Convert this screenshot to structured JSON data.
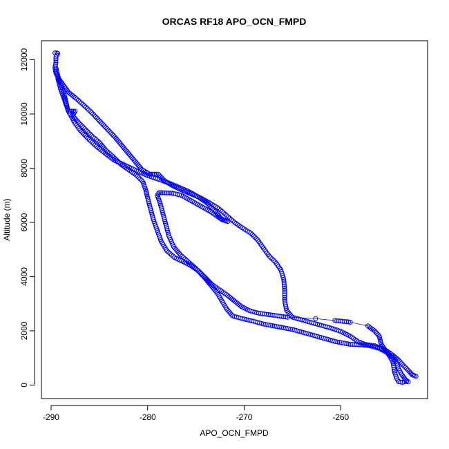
{
  "chart_data": {
    "type": "scatter",
    "title": "ORCAS RF18 APO_OCN_FMPD",
    "xlabel": "APO_OCN_FMPD",
    "ylabel": "Altitude (m)",
    "xlim": [
      -291,
      -251
    ],
    "ylim": [
      -500,
      12700
    ],
    "xticks": [
      -290,
      -280,
      -270,
      -260
    ],
    "yticks": [
      0,
      2000,
      4000,
      6000,
      8000,
      10000,
      12000
    ],
    "marker": "open-circle",
    "color": "#0000ff",
    "grid": false,
    "legend": "none",
    "series": [
      {
        "values": [
          [
            -289.6,
            12250
          ],
          [
            -289.4,
            12250
          ],
          [
            -289.3,
            12230
          ],
          [
            -289.5,
            12100
          ],
          [
            -289.5,
            11900
          ],
          [
            -289.6,
            11700
          ],
          [
            -289.5,
            11500
          ],
          [
            -289.2,
            11300
          ],
          [
            -288.6,
            11000
          ],
          [
            -288.2,
            10800
          ],
          [
            -287.5,
            10600
          ],
          [
            -286.7,
            10350
          ],
          [
            -285.8,
            10050
          ],
          [
            -285.0,
            9750
          ],
          [
            -284.2,
            9450
          ],
          [
            -283.4,
            9150
          ],
          [
            -282.7,
            8850
          ],
          [
            -282.0,
            8550
          ],
          [
            -281.3,
            8250
          ],
          [
            -280.6,
            7950
          ],
          [
            -279.8,
            7780
          ],
          [
            -279.3,
            7780
          ],
          [
            -278.9,
            7780
          ],
          [
            -278.3,
            7550
          ],
          [
            -277.4,
            7350
          ],
          [
            -276.5,
            7200
          ],
          [
            -275.5,
            7050
          ],
          [
            -274.5,
            6900
          ],
          [
            -273.5,
            6700
          ],
          [
            -272.6,
            6500
          ],
          [
            -271.8,
            6250
          ],
          [
            -271.0,
            6000
          ],
          [
            -270.2,
            5800
          ],
          [
            -269.3,
            5600
          ],
          [
            -268.6,
            5350
          ],
          [
            -268.0,
            5050
          ],
          [
            -267.4,
            4750
          ],
          [
            -266.8,
            4550
          ],
          [
            -266.2,
            4250
          ],
          [
            -265.9,
            3900
          ],
          [
            -265.8,
            3500
          ],
          [
            -265.8,
            3100
          ],
          [
            -265.6,
            2750
          ],
          [
            -265.0,
            2500
          ],
          [
            -264.0,
            2400
          ],
          [
            -263.0,
            2300
          ],
          [
            -262.0,
            2200
          ],
          [
            -261.0,
            2100
          ],
          [
            -260.0,
            1980
          ],
          [
            -259.0,
            1800
          ],
          [
            -258.2,
            1600
          ],
          [
            -257.5,
            1500
          ],
          [
            -256.5,
            1450
          ],
          [
            -255.8,
            1350
          ],
          [
            -255.2,
            1250
          ],
          [
            -254.6,
            1100
          ],
          [
            -254.1,
            950
          ],
          [
            -253.7,
            800
          ],
          [
            -253.3,
            650
          ],
          [
            -252.9,
            500
          ],
          [
            -252.6,
            380
          ],
          [
            -252.2,
            320
          ]
        ]
      },
      {
        "values": [
          [
            -289.5,
            11700
          ],
          [
            -289.3,
            11400
          ],
          [
            -289.0,
            11100
          ],
          [
            -288.7,
            10800
          ],
          [
            -288.5,
            10500
          ],
          [
            -288.3,
            10200
          ],
          [
            -288.2,
            10100
          ],
          [
            -287.5,
            10100
          ],
          [
            -287.8,
            9950
          ],
          [
            -287.2,
            9700
          ],
          [
            -286.5,
            9450
          ],
          [
            -285.8,
            9200
          ],
          [
            -285.0,
            8950
          ],
          [
            -284.3,
            8650
          ],
          [
            -283.5,
            8400
          ],
          [
            -282.8,
            8150
          ],
          [
            -282.0,
            7950
          ],
          [
            -281.2,
            7750
          ],
          [
            -280.5,
            7500
          ],
          [
            -280.2,
            7200
          ],
          [
            -280.0,
            6900
          ],
          [
            -279.7,
            6500
          ],
          [
            -279.4,
            6100
          ],
          [
            -279.0,
            5700
          ],
          [
            -278.6,
            5300
          ],
          [
            -278.0,
            4950
          ],
          [
            -277.2,
            4700
          ],
          [
            -276.3,
            4550
          ],
          [
            -275.5,
            4400
          ],
          [
            -274.7,
            4200
          ],
          [
            -274.0,
            3950
          ],
          [
            -273.3,
            3700
          ],
          [
            -272.5,
            3500
          ],
          [
            -271.7,
            3300
          ],
          [
            -271.0,
            3100
          ],
          [
            -270.3,
            2900
          ],
          [
            -269.5,
            2750
          ],
          [
            -268.5,
            2650
          ],
          [
            -267.5,
            2600
          ],
          [
            -266.5,
            2550
          ],
          [
            -265.5,
            2500
          ],
          [
            -262.6,
            2450
          ],
          [
            -260.6,
            2380
          ],
          [
            -259.0,
            2320
          ],
          [
            -257.2,
            2180
          ],
          [
            -256.5,
            2000
          ],
          [
            -256.0,
            1800
          ],
          [
            -255.8,
            1500
          ],
          [
            -255.3,
            1250
          ],
          [
            -254.9,
            1050
          ],
          [
            -254.6,
            850
          ],
          [
            -254.5,
            650
          ],
          [
            -254.4,
            450
          ],
          [
            -254.2,
            250
          ],
          [
            -254.0,
            120
          ],
          [
            -253.6,
            100
          ],
          [
            -253.2,
            130
          ]
        ]
      },
      {
        "values": [
          [
            -289.3,
            11300
          ],
          [
            -289.0,
            10900
          ],
          [
            -288.6,
            10500
          ],
          [
            -288.2,
            10100
          ],
          [
            -287.6,
            9700
          ],
          [
            -287.0,
            9400
          ],
          [
            -286.2,
            9100
          ],
          [
            -285.3,
            8800
          ],
          [
            -284.4,
            8550
          ],
          [
            -283.5,
            8300
          ],
          [
            -282.6,
            8150
          ],
          [
            -281.7,
            8000
          ],
          [
            -280.8,
            7850
          ],
          [
            -279.8,
            7700
          ],
          [
            -278.8,
            7580
          ],
          [
            -277.8,
            7450
          ],
          [
            -276.8,
            7300
          ],
          [
            -275.8,
            7150
          ],
          [
            -274.8,
            6950
          ],
          [
            -273.8,
            6700
          ],
          [
            -273.0,
            6400
          ],
          [
            -272.3,
            6100
          ],
          [
            -271.7,
            6030
          ],
          [
            -272.5,
            6150
          ],
          [
            -273.5,
            6400
          ],
          [
            -274.5,
            6600
          ],
          [
            -275.5,
            6800
          ],
          [
            -276.5,
            7000
          ],
          [
            -277.5,
            7080
          ],
          [
            -278.8,
            7100
          ],
          [
            -279.0,
            7000
          ],
          [
            -278.7,
            6700
          ],
          [
            -278.4,
            6300
          ],
          [
            -278.1,
            5900
          ],
          [
            -277.8,
            5500
          ],
          [
            -277.3,
            5100
          ],
          [
            -276.6,
            4800
          ],
          [
            -275.8,
            4550
          ],
          [
            -275.0,
            4300
          ],
          [
            -274.2,
            4000
          ],
          [
            -273.5,
            3700
          ],
          [
            -272.8,
            3400
          ],
          [
            -272.3,
            3100
          ],
          [
            -271.8,
            2800
          ],
          [
            -271.2,
            2550
          ],
          [
            -270.2,
            2450
          ],
          [
            -269.0,
            2350
          ],
          [
            -268.0,
            2250
          ],
          [
            -266.5,
            2150
          ],
          [
            -265.0,
            2050
          ],
          [
            -263.5,
            1900
          ],
          [
            -262.0,
            1750
          ],
          [
            -260.5,
            1600
          ],
          [
            -259.0,
            1500
          ],
          [
            -257.8,
            1480
          ],
          [
            -257.0,
            1450
          ],
          [
            -256.0,
            1350
          ],
          [
            -255.2,
            1200
          ],
          [
            -254.6,
            1000
          ],
          [
            -254.2,
            800
          ],
          [
            -254.0,
            600
          ],
          [
            -253.7,
            400
          ],
          [
            -253.3,
            200
          ],
          [
            -253.0,
            120
          ]
        ]
      }
    ]
  }
}
